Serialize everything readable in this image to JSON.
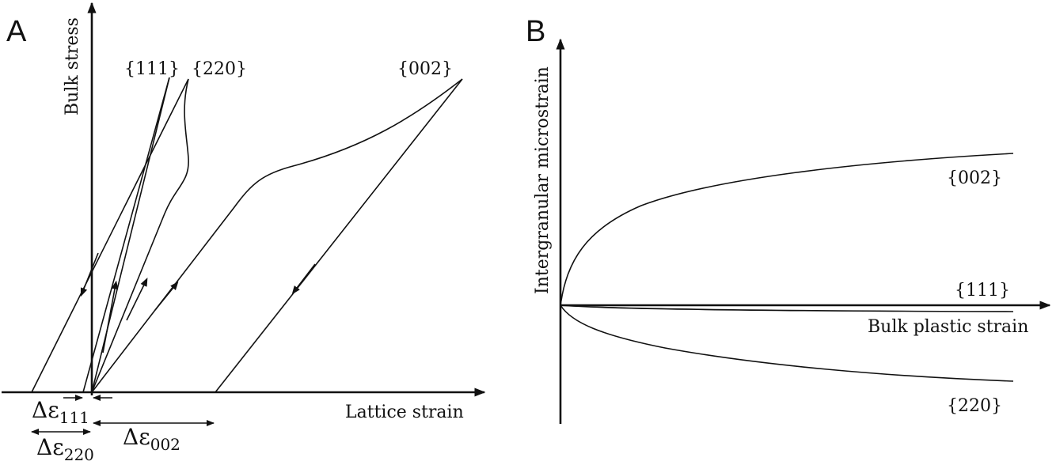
{
  "panel_a": {
    "letter": "A",
    "y_axis_label": "Bulk stress",
    "x_axis_label": "Lattice strain",
    "curve_labels": {
      "c111": "{111}",
      "c220": "{220}",
      "c002": "{002}"
    },
    "strain_labels": {
      "d111_sym": "Δε",
      "d111_sub": "111",
      "d220_sym": "Δε",
      "d220_sub": "220",
      "d002_sym": "Δε",
      "d002_sub": "002"
    }
  },
  "panel_b": {
    "letter": "B",
    "y_axis_label": "Intergranular microstrain",
    "x_axis_label": "Bulk plastic strain",
    "curve_labels": {
      "c002": "{002}",
      "c111": "{111}",
      "c220": "{220}"
    }
  }
}
